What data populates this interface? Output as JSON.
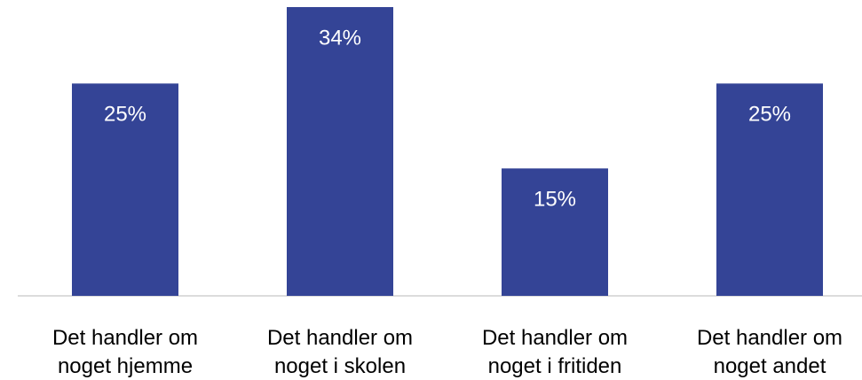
{
  "chart_data": {
    "type": "bar",
    "categories": [
      "Det handler om noget hjemme",
      "Det handler om noget i skolen",
      "Det handler om noget i fritiden",
      "Det handler om noget andet"
    ],
    "values": [
      25,
      34,
      15,
      25
    ],
    "value_labels": [
      "25%",
      "34%",
      "15%",
      "25%"
    ],
    "color": "#344496",
    "ylim": [
      0,
      34
    ]
  }
}
